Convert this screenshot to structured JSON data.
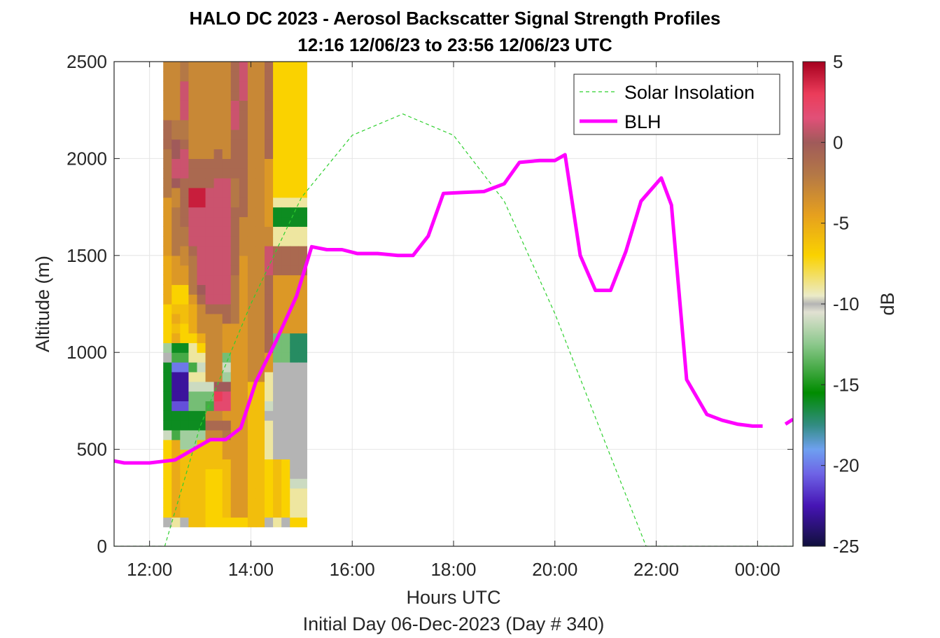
{
  "title_line1": "HALO DC 2023 - Aerosol Backscatter Signal Strength Profiles",
  "title_line2": "12:16 12/06/23 to 23:56 12/06/23  UTC",
  "chart_data": {
    "type": "heatmap",
    "xlabel": "Hours UTC",
    "ylabel": "Altitude (m)",
    "footer": "Initial Day 06-Dec-2023 (Day # 340)",
    "xlim_hours": [
      11.3,
      24.7
    ],
    "ylim": [
      0,
      2500
    ],
    "x_ticks": [
      {
        "value": 12,
        "label": "12:00"
      },
      {
        "value": 14,
        "label": "14:00"
      },
      {
        "value": 16,
        "label": "16:00"
      },
      {
        "value": 18,
        "label": "18:00"
      },
      {
        "value": 20,
        "label": "20:00"
      },
      {
        "value": 22,
        "label": "22:00"
      },
      {
        "value": 24,
        "label": "00:00"
      }
    ],
    "y_ticks": [
      0,
      500,
      1000,
      1500,
      2000,
      2500
    ],
    "grid": true,
    "legend_position": "top-right",
    "colorbar": {
      "label": "dB",
      "min": -25,
      "max": 5,
      "ticks": [
        5,
        0,
        -5,
        -10,
        -15,
        -20,
        -25
      ]
    },
    "heatmap": {
      "x_start": 12.27,
      "x_step": 0.1667,
      "y_start": 100,
      "y_step": 50,
      "columns_db_bottom_to_top": [
        [
          -10,
          -7,
          -7,
          -7,
          -7,
          -7,
          -7,
          -7,
          -7,
          -11,
          -16,
          -16,
          -16,
          -16,
          -16,
          -16,
          -16,
          -10,
          -12,
          -7,
          -7,
          -7,
          -7,
          -5,
          -5,
          -5,
          -5,
          -5,
          -4,
          -4,
          -4,
          -4,
          -4,
          -4,
          -2,
          -2,
          -2,
          -2,
          -2,
          -1,
          -1,
          -1,
          -3,
          -3,
          -3,
          -3,
          -3,
          -3
        ],
        [
          -9,
          -5,
          -5,
          -5,
          -5,
          -5,
          -5,
          -5,
          -5,
          -14,
          -16,
          -16,
          -21,
          -23,
          -23,
          -23,
          -20,
          -14,
          -16,
          -5,
          -6,
          -5,
          -6,
          -7,
          -7,
          -4,
          -4,
          -4,
          -2,
          -2,
          -2,
          -2,
          -2,
          -3,
          -3,
          0,
          1,
          1,
          0,
          0,
          -2,
          -2,
          -3,
          -3,
          -3,
          -3,
          -3,
          -3
        ],
        [
          -10,
          -6,
          -6,
          -6,
          -6,
          -6,
          -6,
          -6,
          -12,
          -12,
          -16,
          -16,
          -21,
          -23,
          -23,
          -23,
          -20,
          -14,
          -16,
          -7,
          -7,
          -6,
          -6,
          -7,
          -7,
          -4,
          -4,
          -3,
          -3,
          -2,
          -2,
          -1,
          -1,
          -1,
          -1,
          -1,
          1,
          1,
          1,
          -1,
          -2,
          -2,
          1,
          1,
          1,
          1,
          -2,
          -2
        ],
        [
          -6,
          -6,
          -6,
          -6,
          -6,
          -6,
          -6,
          -6,
          -12,
          -12,
          -16,
          -16,
          -13,
          -13,
          -11,
          -9,
          -14,
          -9,
          -9,
          -7,
          -5,
          -5,
          -5,
          -4,
          -2,
          -2,
          -2,
          -2,
          -1,
          1,
          1,
          1,
          1,
          4,
          4,
          -1,
          -1,
          -1,
          -3,
          -3,
          -3,
          -3,
          -3,
          -3,
          -3,
          -3,
          -3,
          -3
        ],
        [
          -6,
          -6,
          -6,
          -6,
          -6,
          -6,
          -6,
          -6,
          -6,
          -12,
          -16,
          -16,
          -13,
          -13,
          -11,
          -9,
          -11,
          -9,
          -7,
          -5,
          -3,
          -3,
          -3,
          -1,
          0,
          1,
          1,
          1,
          1,
          1,
          1,
          1,
          1,
          4,
          4,
          -1,
          -1,
          -1,
          -3,
          -3,
          -3,
          -3,
          -3,
          -3,
          -3,
          -3,
          -3,
          -3
        ],
        [
          -7,
          -7,
          -7,
          -7,
          -7,
          -7,
          -6,
          -6,
          -6,
          -3,
          -1,
          -3,
          -14,
          -13,
          -11,
          -3,
          -3,
          -3,
          -3,
          -3,
          -3,
          -3,
          -1,
          1,
          1,
          1,
          1,
          1,
          1,
          1,
          1,
          1,
          1,
          1,
          1,
          -1,
          -1,
          -1,
          -3,
          -3,
          -3,
          -3,
          -3,
          -3,
          -3,
          -3,
          -3,
          -3
        ],
        [
          -7,
          -7,
          -7,
          -7,
          -7,
          -7,
          -6,
          -6,
          -6,
          -3,
          -1,
          -3,
          2,
          3,
          0,
          -3,
          -3,
          -3,
          -3,
          -3,
          -3,
          -3,
          -1,
          1,
          1,
          1,
          1,
          1,
          1,
          1,
          1,
          1,
          1,
          1,
          1,
          1,
          -1,
          -1,
          -1,
          -3,
          -3,
          -3,
          -3,
          -3,
          -3,
          -3,
          -3,
          -3
        ],
        [
          -7,
          -6,
          -6,
          -6,
          -6,
          -6,
          -6,
          -4,
          -4,
          -2,
          -1,
          -4,
          2,
          2,
          0,
          -12,
          -11,
          -13,
          -4,
          -4,
          -4,
          -1,
          -1,
          1,
          1,
          1,
          1,
          1,
          1,
          1,
          1,
          1,
          1,
          1,
          1,
          1,
          -1,
          -1,
          -3,
          -3,
          -3,
          -3,
          -3,
          -3,
          -3,
          -3,
          -3,
          -3
        ],
        [
          -7,
          -4,
          -4,
          -4,
          -4,
          -4,
          -4,
          -4,
          -4,
          -4,
          -4,
          -4,
          -4,
          -4,
          -4,
          -4,
          -4,
          -4,
          -4,
          -4,
          -4,
          -2,
          -2,
          -2,
          -2,
          -2,
          -1,
          -1,
          -1,
          -1,
          -1,
          -1,
          -1,
          -2,
          -2,
          -2,
          -1,
          -1,
          -1,
          -1,
          -1,
          1,
          1,
          1,
          -1,
          -1,
          -1,
          -1
        ],
        [
          -7,
          -4,
          -4,
          -4,
          -4,
          -4,
          -4,
          -4,
          -4,
          -4,
          -4,
          -4,
          -4,
          -4,
          -4,
          -4,
          -4,
          -4,
          -4,
          -4,
          -4,
          -4,
          -4,
          -4,
          -4,
          -4,
          -4,
          -4,
          -3,
          -3,
          -3,
          -3,
          -1,
          -1,
          -1,
          -1,
          -1,
          -1,
          -1,
          -1,
          -1,
          -1,
          -1,
          -1,
          1,
          1,
          1,
          1
        ],
        [
          -6,
          -6,
          -6,
          -6,
          -6,
          -6,
          -6,
          -6,
          -6,
          -6,
          -6,
          -6,
          -6,
          -6,
          -6,
          -3,
          -3,
          -3,
          -3,
          -3,
          -3,
          -3,
          -3,
          -3,
          -3,
          -3,
          -3,
          -3,
          -3,
          -3,
          -3,
          -3,
          -3,
          -3,
          -3,
          -3,
          -3,
          -3,
          -3,
          -3,
          -3,
          -3,
          -3,
          -3,
          -3,
          -3,
          -3,
          -3
        ],
        [
          -6,
          -6,
          -6,
          -6,
          -6,
          -6,
          -6,
          -6,
          -6,
          -6,
          -6,
          -6,
          -6,
          -6,
          -6,
          -3,
          -3,
          -3,
          -3,
          -3,
          -3,
          -3,
          -3,
          -3,
          -3,
          -3,
          -3,
          -3,
          -3,
          -3,
          -3,
          -3,
          -3,
          -3,
          -3,
          -3,
          -3,
          -3,
          -3,
          -3,
          -3,
          -3,
          -3,
          -3,
          -3,
          -3,
          -3,
          -3
        ],
        [
          -10,
          -7,
          -7,
          -7,
          -7,
          -7,
          -7,
          -9,
          -9,
          -9,
          -9,
          -10,
          -11,
          -9,
          -9,
          -9,
          -4,
          -4,
          -1,
          -1,
          -1,
          -1,
          -1,
          -1,
          -1,
          -1,
          1,
          1,
          1,
          -3,
          -3,
          -4,
          -4,
          -4,
          -4,
          -4,
          -4,
          -4,
          -1,
          -1,
          -1,
          -1,
          -1,
          -1,
          -1,
          -1,
          -1,
          -1
        ],
        [
          -9,
          -6,
          -6,
          -6,
          -6,
          -6,
          -6,
          -10,
          -10,
          -10,
          -10,
          -10,
          -10,
          -10,
          -10,
          -10,
          -10,
          -13,
          -13,
          -13,
          -4,
          -4,
          -4,
          -4,
          -4,
          -4,
          -1,
          -1,
          -1,
          -9,
          -9,
          -16,
          -16,
          -9,
          -7,
          -7,
          -7,
          -7,
          -7,
          -7,
          -7,
          -7,
          -7,
          -7,
          -7,
          -7,
          -7,
          -7
        ],
        [
          -10,
          -7,
          -7,
          -7,
          -7,
          -7,
          -7,
          -10,
          -10,
          -10,
          -10,
          -10,
          -10,
          -10,
          -10,
          -10,
          -10,
          -13,
          -13,
          -13,
          -4,
          -4,
          -4,
          -4,
          -4,
          -4,
          -1,
          -1,
          -1,
          -9,
          -9,
          -16,
          -16,
          -9,
          -7,
          -7,
          -7,
          -7,
          -7,
          -7,
          -7,
          -7,
          -7,
          -7,
          -7,
          -7,
          -7,
          -7
        ],
        [
          -7,
          -9,
          -9,
          -9,
          -11,
          -10,
          -10,
          -10,
          -10,
          -10,
          -10,
          -10,
          -10,
          -10,
          -10,
          -10,
          -10,
          -17,
          -17,
          -17,
          -4,
          -4,
          -4,
          -4,
          -4,
          -4,
          -1,
          -1,
          -1,
          -9,
          -9,
          -16,
          -16,
          -9,
          -7,
          -7,
          -7,
          -7,
          -7,
          -7,
          -7,
          -7,
          -7,
          -7,
          -7,
          -7,
          -7,
          -7
        ],
        [
          -7,
          -9,
          -9,
          -9,
          -11,
          -10,
          -10,
          -10,
          -10,
          -10,
          -10,
          -10,
          -10,
          -10,
          -10,
          -10,
          -10,
          -17,
          -17,
          -17,
          -4,
          -4,
          -4,
          -4,
          -4,
          -4,
          -1,
          -1,
          -1,
          -9,
          -9,
          -16,
          -16,
          -9,
          -7,
          -7,
          -7,
          -7,
          -7,
          -7,
          -7,
          -7,
          -7,
          -7,
          -7,
          -7,
          -7,
          -7
        ]
      ]
    },
    "series": [
      {
        "name": "Solar Insolation",
        "style": "dashed",
        "color": "#2fd02f",
        "x": [
          11.3,
          12.3,
          13.0,
          14.0,
          15.0,
          16.0,
          17.0,
          18.0,
          19.0,
          20.0,
          21.0,
          21.8,
          22.0,
          24.7
        ],
        "y": [
          0,
          0,
          620,
          1250,
          1800,
          2120,
          2230,
          2120,
          1780,
          1200,
          530,
          0,
          0,
          0
        ]
      },
      {
        "name": "BLH",
        "style": "solid",
        "color": "#ff00ff",
        "x": [
          11.3,
          11.5,
          12.0,
          12.5,
          12.9,
          13.2,
          13.5,
          13.8,
          14.1,
          14.5,
          14.9,
          15.2,
          15.5,
          15.8,
          16.1,
          16.5,
          16.9,
          17.2,
          17.5,
          17.8,
          18.2,
          18.6,
          19.0,
          19.3,
          19.7,
          20.0,
          20.2,
          20.5,
          20.8,
          21.1,
          21.4,
          21.7,
          21.9,
          22.1,
          22.3,
          22.6,
          23.0,
          23.3,
          23.6,
          23.9,
          24.1
        ],
        "y": [
          440,
          430,
          430,
          445,
          505,
          550,
          550,
          610,
          850,
          1060,
          1290,
          1545,
          1530,
          1530,
          1510,
          1510,
          1500,
          1500,
          1600,
          1820,
          1825,
          1830,
          1870,
          1980,
          1990,
          1990,
          2020,
          1500,
          1320,
          1320,
          1520,
          1780,
          1840,
          1900,
          1760,
          860,
          680,
          650,
          630,
          620,
          620
        ]
      }
    ]
  }
}
